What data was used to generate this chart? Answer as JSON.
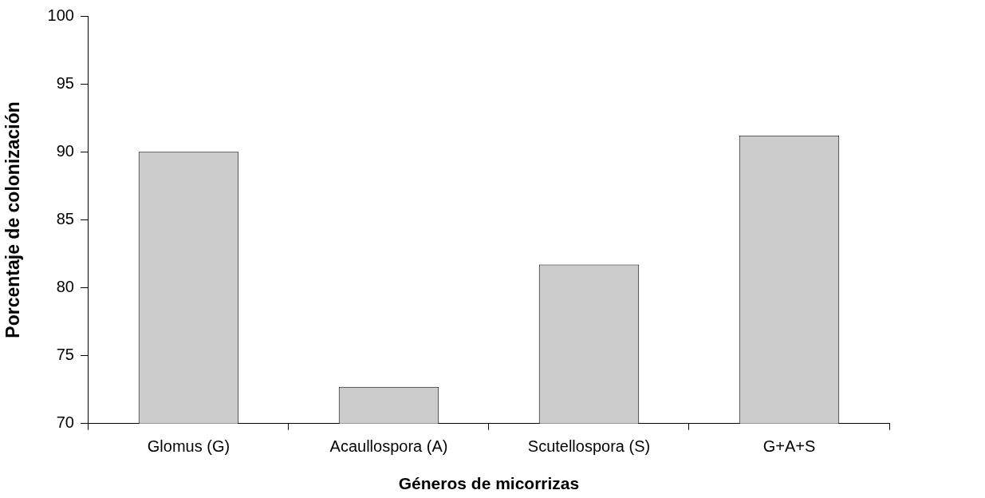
{
  "chart_data": {
    "type": "bar",
    "xlabel": "Géneros de micorrizas",
    "ylabel": "Porcentaje de colonización",
    "categories": [
      "Glomus (G)",
      "Acaullospora (A)",
      "Scutellospora (S)",
      "G+A+S"
    ],
    "values": [
      90.0,
      72.7,
      81.7,
      91.2
    ],
    "color": "#cccccc",
    "ylim": [
      70,
      100
    ],
    "yticks": [
      70,
      75,
      80,
      85,
      90,
      95,
      100
    ],
    "grid": false,
    "legend": false
  }
}
